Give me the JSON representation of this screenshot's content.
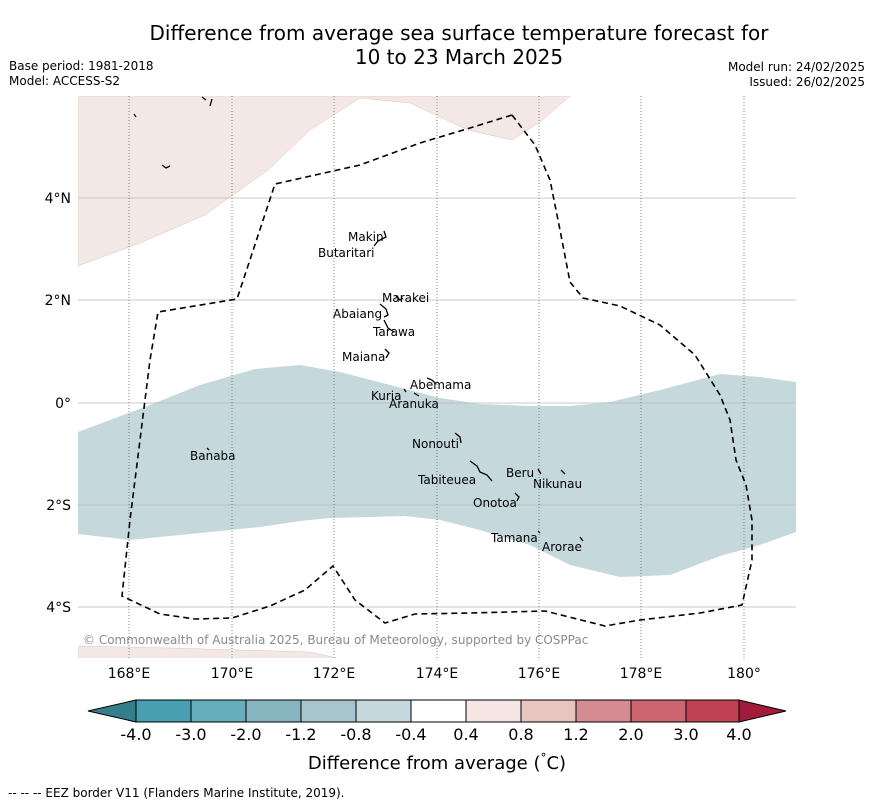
{
  "header": {
    "title_line1": "Difference from average sea surface temperature forecast for",
    "title_line2": "10 to 23 March 2025",
    "base_period": "Base period: 1981-2018",
    "model": "Model: ACCESS-S2",
    "model_run": "Model run: 24/02/2025",
    "issued": "Issued: 26/02/2025"
  },
  "map": {
    "lat_ticks": [
      "4°N",
      "2°N",
      "0°",
      "2°S",
      "4°S"
    ],
    "lon_ticks": [
      "168°E",
      "170°E",
      "172°E",
      "174°E",
      "176°E",
      "178°E",
      "180°"
    ],
    "copyright": "© Commonwealth of Australia 2025, Bureau of Meteorology, supported by COSPPac",
    "islands": {
      "makin": "Makin",
      "butaritari": "Butaritari",
      "marakei": "Marakei",
      "abaiang": "Abaiang",
      "tarawa": "Tarawa",
      "maiana": "Maiana",
      "abemama": "Abemama",
      "kuria": "Kuria",
      "aranuka": "Aranuka",
      "banaba": "Banaba",
      "nonouti": "Nonouti",
      "beru": "Beru",
      "tabiteuea": "Tabiteuea",
      "nikunau": "Nikunau",
      "onotoa": "Onotoa",
      "tamana": "Tamana",
      "arorae": "Arorae"
    },
    "colors": {
      "warm_fill": "#f4e8e6",
      "cool_fill": "#c5d8dc",
      "border": "#000000"
    }
  },
  "colorbar": {
    "labels": [
      "-4.0",
      "-3.0",
      "-2.0",
      "-1.2",
      "-0.8",
      "-0.4",
      "0.4",
      "0.8",
      "1.2",
      "2.0",
      "3.0",
      "4.0"
    ],
    "colors": [
      "#357f8a",
      "#479faf",
      "#68adbb",
      "#86b5c0",
      "#a8c5cb",
      "#c5d8dc",
      "#ffffff",
      "#f5e6e5",
      "#e8c5c1",
      "#d58b92",
      "#cb6570",
      "#c04252",
      "#a01c3a"
    ],
    "title": "Difference from average (",
    "title_symbol": "°",
    "title_unit": "C)"
  },
  "footer": {
    "legend": "--  --  -- EEZ border V11 (Flanders Marine Institute, 2019)."
  }
}
